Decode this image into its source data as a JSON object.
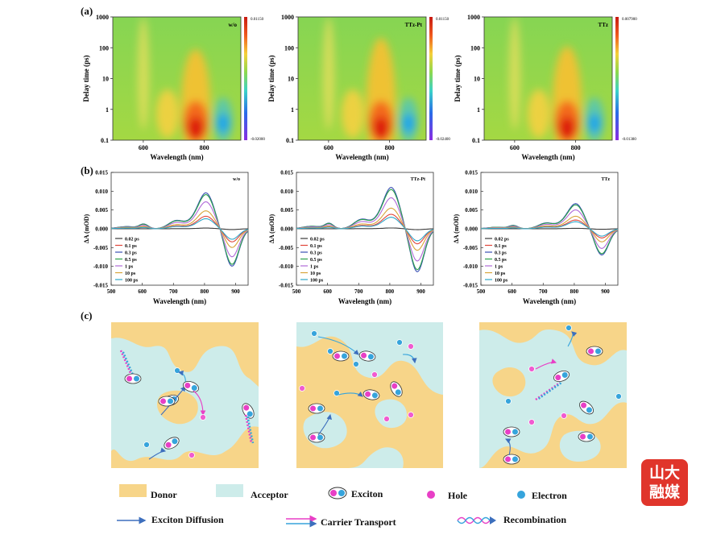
{
  "labels": {
    "a": "(a)",
    "b": "(b)",
    "c": "(c)"
  },
  "colors": {
    "donor": "#f7d589",
    "acceptor": "#cdecea",
    "hole": "#e83fc6",
    "electron": "#36a4dc",
    "diffusion": "#3d6fbd"
  },
  "chart_data": [
    {
      "type": "heatmap",
      "panel": "a",
      "label": "w/o",
      "xlabel": "Wavelength (nm)",
      "ylabel": "Delay time (ps)",
      "xticks": [
        "600",
        "800"
      ],
      "yticks": [
        "0.1",
        "1",
        "10",
        "100",
        "1000"
      ],
      "ylim": [
        0.1,
        1000
      ],
      "yscale": "log",
      "colorbar": {
        "max": "0.01150",
        "min": "-0.02000"
      }
    },
    {
      "type": "heatmap",
      "panel": "a",
      "label": "TTz-Pt",
      "xlabel": "Wavelength (nm)",
      "ylabel": "Delay time (ps)",
      "xticks": [
        "600",
        "800"
      ],
      "yticks": [
        "0.1",
        "1",
        "10",
        "100",
        "1000"
      ],
      "ylim": [
        0.1,
        1000
      ],
      "yscale": "log",
      "colorbar": {
        "max": "0.01150",
        "min": "-0.02400"
      }
    },
    {
      "type": "heatmap",
      "panel": "a",
      "label": "TTz",
      "xlabel": "Wavelength (nm)",
      "ylabel": "Delay time (ps)",
      "xticks": [
        "600",
        "800"
      ],
      "yticks": [
        "0.1",
        "1",
        "10",
        "100",
        "1000"
      ],
      "ylim": [
        0.1,
        1000
      ],
      "yscale": "log",
      "colorbar": {
        "max": "0.007900",
        "min": "-0.01380"
      }
    },
    {
      "type": "line",
      "panel": "b",
      "label": "w/o",
      "xlabel": "Wavelength (nm)",
      "ylabel": "ΔA (mOD)",
      "xlim": [
        500,
        940
      ],
      "ylim": [
        -0.015,
        0.015
      ],
      "xticks": [
        "500",
        "600",
        "700",
        "800",
        "900"
      ],
      "yticks": [
        "0.015",
        "0.010",
        "0.005",
        "0.000",
        "-0.005",
        "-0.010",
        "-0.015"
      ],
      "legend": [
        "0.02 ps",
        "0.1 ps",
        "0.3 ps",
        "0.5 ps",
        "1 ps",
        "10 ps",
        "100 ps"
      ],
      "scale": 1.0
    },
    {
      "type": "line",
      "panel": "b",
      "label": "TTz-Pt",
      "xlabel": "Wavelength (nm)",
      "ylabel": "ΔA (mOD)",
      "xlim": [
        500,
        940
      ],
      "ylim": [
        -0.015,
        0.015
      ],
      "xticks": [
        "500",
        "600",
        "700",
        "800",
        "900"
      ],
      "yticks": [
        "0.015",
        "0.010",
        "0.005",
        "0.000",
        "-0.005",
        "-0.010",
        "-0.015"
      ],
      "legend": [
        "0.02 ps",
        "0.1 ps",
        "0.3 ps",
        "0.5 ps",
        "1 ps",
        "10 ps",
        "100 ps"
      ],
      "scale": 1.15
    },
    {
      "type": "line",
      "panel": "b",
      "label": "TTz",
      "xlabel": "Wavelength (nm)",
      "ylabel": "ΔA (mOD)",
      "xlim": [
        500,
        940
      ],
      "ylim": [
        -0.015,
        0.015
      ],
      "xticks": [
        "500",
        "600",
        "700",
        "800",
        "900"
      ],
      "yticks": [
        "0.015",
        "0.010",
        "0.005",
        "0.000",
        "-0.005",
        "-0.010",
        "-0.015"
      ],
      "legend": [
        "0.02 ps",
        "0.1 ps",
        "0.3 ps",
        "0.5 ps",
        "1 ps",
        "10 ps",
        "100 ps"
      ],
      "scale": 0.7
    }
  ],
  "legend_c": {
    "donor": "Donor",
    "acceptor": "Acceptor",
    "exciton": "Exciton",
    "hole": "Hole",
    "electron": "Electron",
    "diffusion": "Exciton Diffusion",
    "transport": "Carrier Transport",
    "recombination": "Recombination"
  },
  "watermark": {
    "line1": "山大",
    "line2": "融媒"
  },
  "series_colors": [
    "#3b3b3b",
    "#e0453a",
    "#3a4fb5",
    "#2aa04a",
    "#b06ad8",
    "#d8a43a",
    "#30a6c9"
  ]
}
